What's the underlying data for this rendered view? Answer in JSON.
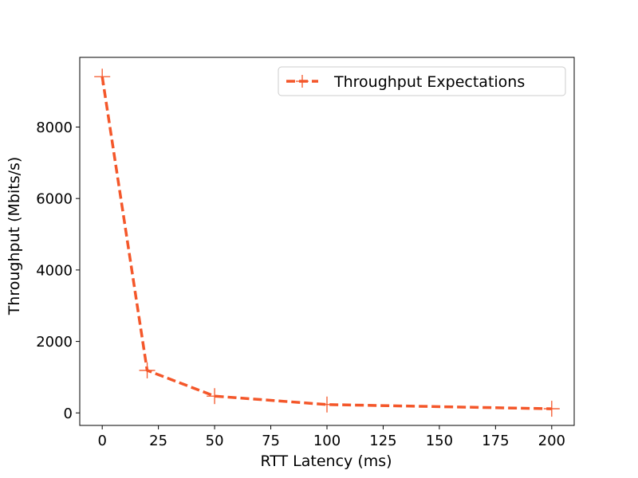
{
  "chart_data": {
    "type": "line",
    "title": "",
    "xlabel": "RTT Latency (ms)",
    "ylabel": "Throughput (Mbits/s)",
    "xlim": [
      -10,
      210
    ],
    "ylim": [
      -350,
      9950
    ],
    "xticks": [
      0,
      25,
      50,
      75,
      100,
      125,
      150,
      175,
      200
    ],
    "yticks": [
      0,
      2000,
      4000,
      6000,
      8000
    ],
    "grid": false,
    "legend_position": "top-right",
    "series": [
      {
        "name": "Throughput Expectations",
        "color": "#f4572a",
        "line_style": "dashed",
        "marker": "plus",
        "x": [
          0,
          20,
          50,
          100,
          200
        ],
        "y": [
          9410,
          1190,
          470,
          235,
          117
        ]
      }
    ]
  }
}
